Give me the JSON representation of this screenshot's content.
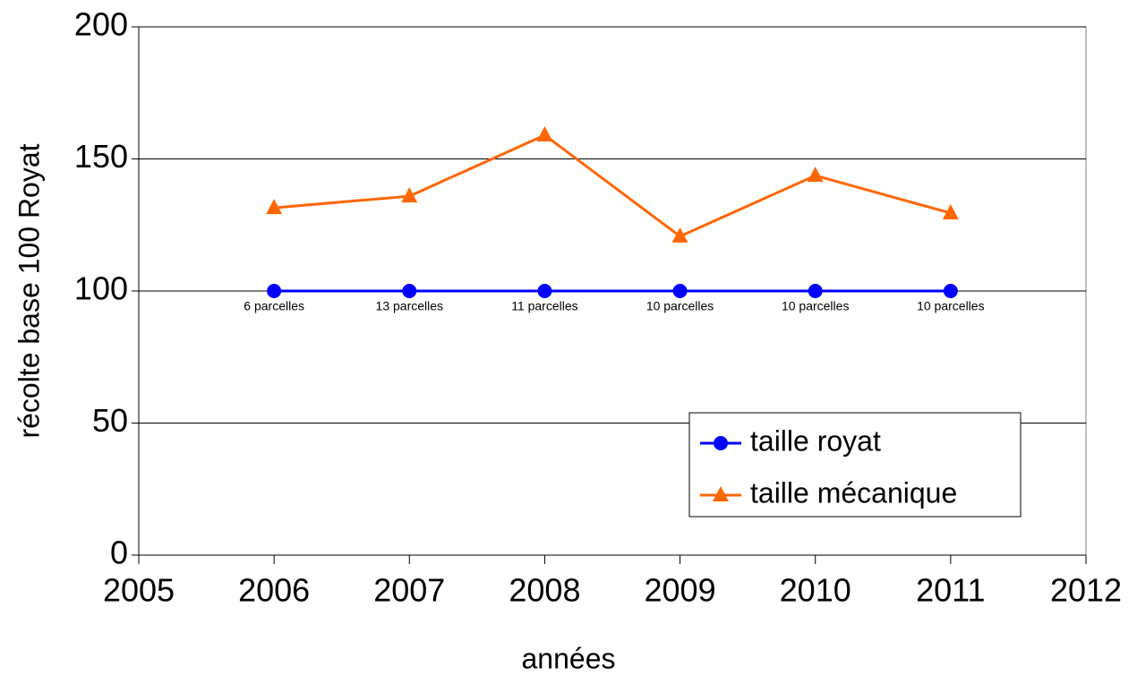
{
  "chart_data": {
    "type": "line",
    "xlabel": "années",
    "ylabel": "récolte base 100 Royat",
    "x": [
      2006,
      2007,
      2008,
      2009,
      2010,
      2011
    ],
    "series": [
      {
        "name": "taille royat",
        "color": "#0000ff",
        "marker": "circle",
        "values": [
          100,
          100,
          100,
          100,
          100,
          100
        ]
      },
      {
        "name": "taille mécanique",
        "color": "#ff6600",
        "marker": "triangle",
        "values": [
          131.5,
          135.9,
          159,
          120.7,
          143.7,
          129.5
        ]
      }
    ],
    "annotations": [
      {
        "x": 2006,
        "text": "6 parcelles"
      },
      {
        "x": 2007,
        "text": "13 parcelles"
      },
      {
        "x": 2008,
        "text": "11 parcelles"
      },
      {
        "x": 2009,
        "text": "10 parcelles"
      },
      {
        "x": 2010,
        "text": "10 parcelles"
      },
      {
        "x": 2011,
        "text": "10 parcelles"
      }
    ],
    "xlim": [
      2005,
      2012
    ],
    "xticks": [
      2005,
      2006,
      2007,
      2008,
      2009,
      2010,
      2011,
      2012
    ],
    "ylim": [
      0,
      200
    ],
    "yticks": [
      0,
      50,
      100,
      150,
      200
    ],
    "grid": true,
    "legend": "lower right"
  }
}
